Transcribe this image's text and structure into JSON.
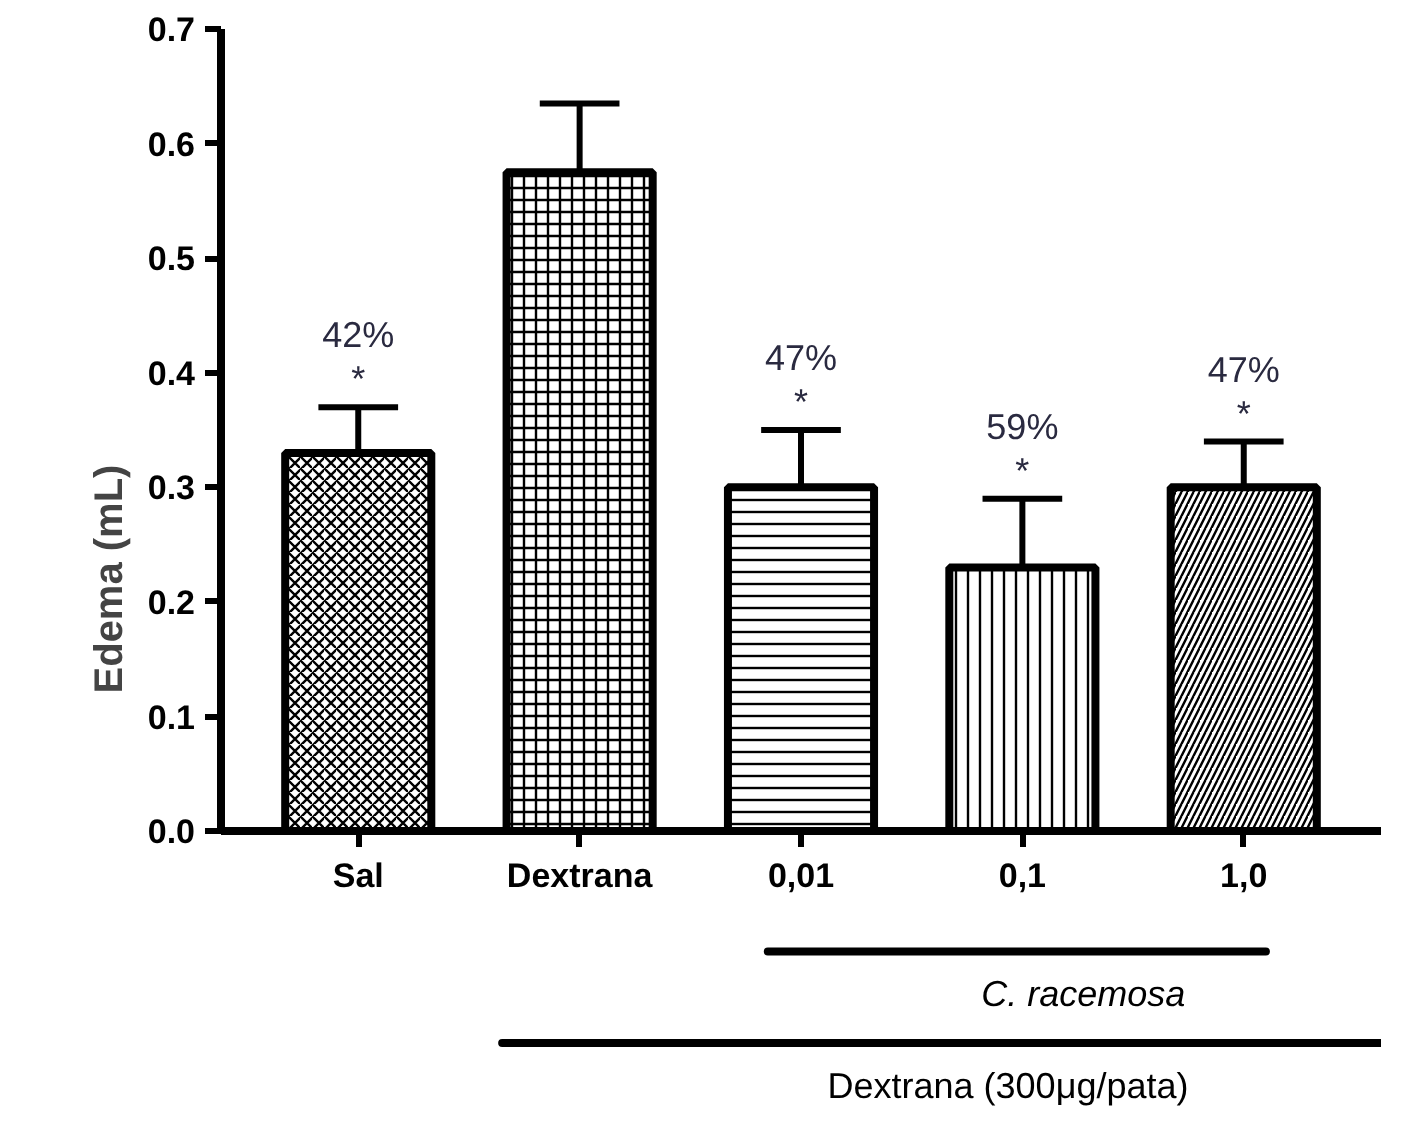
{
  "chart_data": {
    "type": "bar",
    "ylabel": "Edema (mL)",
    "categories": [
      "Sal",
      "Dextrana",
      "0,01",
      "0,1",
      "1,0"
    ],
    "values": [
      0.33,
      0.575,
      0.3,
      0.23,
      0.3
    ],
    "errors": [
      [
        0.33,
        0.37
      ],
      [
        0.575,
        0.635
      ],
      [
        0.3,
        0.35
      ],
      [
        0.23,
        0.29
      ],
      [
        0.3,
        0.34
      ]
    ],
    "colors": [
      "#000000",
      "#000000",
      "#000000",
      "#000000",
      "#000000"
    ],
    "ylim": [
      0,
      0.7
    ],
    "yticks": [
      {
        "value": 0,
        "label": "0.0"
      },
      0.1,
      0.2,
      0.3,
      0.4,
      0.5,
      0.6,
      0.7
    ],
    "grid": false,
    "annotations": [
      "42%",
      "*",
      "47%",
      "*",
      "59%",
      "*",
      "47%",
      "*",
      "C. racemosa",
      "Dextrana (300μg/pata)"
    ]
  }
}
